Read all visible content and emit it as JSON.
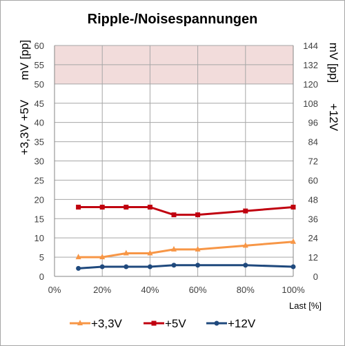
{
  "chart_data": {
    "type": "line",
    "title": "Ripple-/Noisespannungen",
    "x": [
      10,
      20,
      30,
      40,
      50,
      60,
      80,
      100
    ],
    "x_tick_labels": [
      "0%",
      "20%",
      "40%",
      "60%",
      "80%",
      "100%"
    ],
    "xlabel": "Last [%]",
    "xlim": [
      0,
      100
    ],
    "ylim_left": [
      0,
      60
    ],
    "y_ticks_left": [
      "0",
      "5",
      "10",
      "15",
      "20",
      "25",
      "30",
      "35",
      "40",
      "45",
      "50",
      "55",
      "60"
    ],
    "ylabel_left_top": "mV [pp]",
    "ylabel_left_bottom": "+3,3V +5V",
    "ylim_right": [
      0,
      144
    ],
    "y_ticks_right": [
      "0",
      "12",
      "24",
      "36",
      "48",
      "60",
      "72",
      "84",
      "96",
      "108",
      "120",
      "132",
      "144"
    ],
    "ylabel_right_top": "mV [pp]",
    "ylabel_right_bottom": "+12V",
    "limit_band": {
      "from": 50,
      "to": 60,
      "color": "#f2dcdb"
    },
    "grid": true,
    "legend_position": "bottom",
    "series": [
      {
        "name": "+3,3V",
        "axis": "left",
        "marker": "triangle",
        "color": "#f79646",
        "values": [
          5,
          5,
          6,
          6,
          7,
          7,
          8,
          9
        ]
      },
      {
        "name": "+5V",
        "axis": "left",
        "marker": "square",
        "color": "#c0000f",
        "values": [
          18,
          18,
          18,
          18,
          16,
          16,
          17,
          18
        ]
      },
      {
        "name": "+12V",
        "axis": "right",
        "marker": "circle",
        "color": "#1f497d",
        "values": [
          5,
          6,
          6,
          6,
          7,
          7,
          7,
          6
        ]
      }
    ]
  }
}
